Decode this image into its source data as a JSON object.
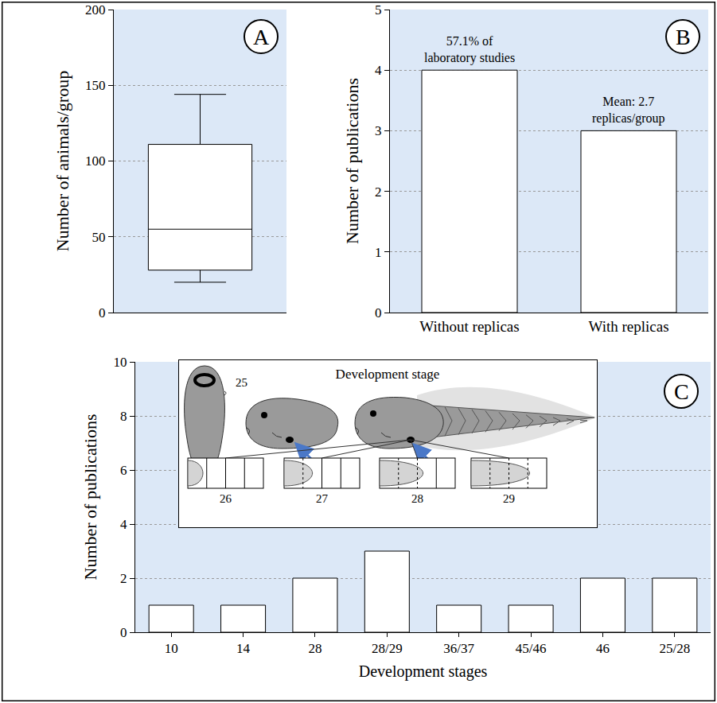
{
  "chart_data": [
    {
      "type": "box",
      "panel_label": "A",
      "y_label": "Number of animals/group",
      "stats": {
        "min": 20,
        "q1": 28,
        "median": 55,
        "q3": 111,
        "max": 144
      },
      "color": "#ffffff",
      "ylim": [
        0,
        200
      ],
      "yticks": [
        0,
        50,
        100,
        150,
        200
      ],
      "grid": true,
      "tick_labels": "y"
    },
    {
      "type": "bar",
      "panel_label": "B",
      "y_label": "Number of publications",
      "categories": [
        "Without replicas",
        "With replicas"
      ],
      "values": [
        4,
        3
      ],
      "color": "#ffffff",
      "annotations": [
        {
          "category": "Without replicas",
          "text": "57.1% of laboratory studies"
        },
        {
          "category": "With replicas",
          "text": "Mean: 2.7 replicas/group"
        }
      ],
      "ylim": [
        0,
        5
      ],
      "yticks": [
        0,
        1,
        2,
        3,
        4,
        5
      ],
      "grid": true
    },
    {
      "type": "bar",
      "panel_label": "C",
      "x_label": "Development stages",
      "y_label": "Number of publications",
      "categories": [
        "10",
        "14",
        "28",
        "28/29",
        "36/37",
        "45/46",
        "46",
        "25/28"
      ],
      "values": [
        1,
        1,
        2,
        3,
        1,
        1,
        2,
        2
      ],
      "color": "#ffffff",
      "ylim": [
        0,
        10
      ],
      "yticks": [
        0,
        2,
        4,
        6,
        8,
        10
      ],
      "grid": true,
      "inset": {
        "title": "Development stage",
        "top_view_stage": "25",
        "limb_stages": [
          "26",
          "27",
          "28",
          "29"
        ]
      }
    }
  ]
}
